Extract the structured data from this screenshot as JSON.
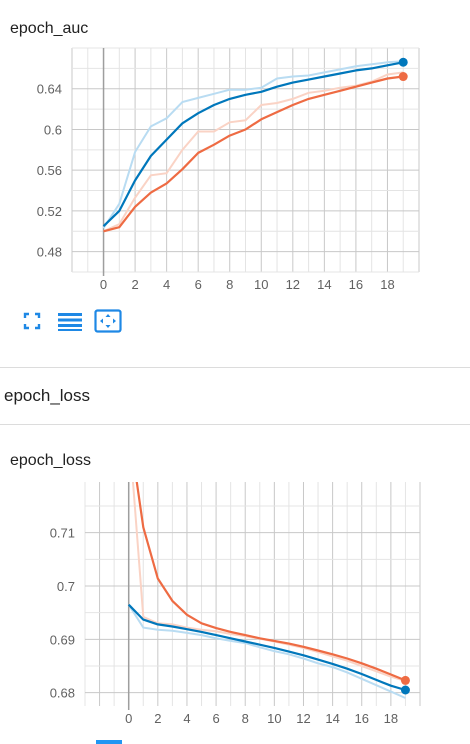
{
  "cards": {
    "auc_title": "epoch_auc",
    "loss_section": "epoch_loss",
    "loss_title": "epoch_loss"
  },
  "toolbar": {
    "fullscreen_icon": "fullscreen-icon",
    "legend_icon": "list-icon",
    "fit_icon": "fit-domain-icon",
    "accent": "#1e88e5"
  },
  "chart_data": [
    {
      "type": "line",
      "title": "epoch_auc",
      "xlabel": "",
      "ylabel": "",
      "xlim": [
        -2,
        20
      ],
      "ylim": [
        0.46,
        0.68
      ],
      "xticks": [
        0,
        2,
        4,
        6,
        8,
        10,
        12,
        14,
        16,
        18
      ],
      "yticks": [
        0.48,
        0.52,
        0.56,
        0.6,
        0.64
      ],
      "ytick_labels": [
        "0.48",
        "0.52",
        "0.56",
        "0.6",
        "0.64"
      ],
      "grid": true,
      "x": [
        0,
        1,
        2,
        3,
        4,
        5,
        6,
        7,
        8,
        9,
        10,
        11,
        12,
        13,
        14,
        15,
        16,
        17,
        18,
        19
      ],
      "series": [
        {
          "color": "#0077bb",
          "raw_color": "#b9dcf2",
          "raw": [
            0.503,
            0.527,
            0.578,
            0.603,
            0.611,
            0.627,
            0.631,
            0.635,
            0.639,
            0.639,
            0.641,
            0.65,
            0.652,
            0.653,
            0.656,
            0.659,
            0.662,
            0.664,
            0.666,
            0.667
          ],
          "values": [
            0.505,
            0.52,
            0.55,
            0.574,
            0.59,
            0.606,
            0.616,
            0.624,
            0.63,
            0.634,
            0.637,
            0.642,
            0.646,
            0.649,
            0.652,
            0.655,
            0.658,
            0.66,
            0.663,
            0.666
          ]
        },
        {
          "color": "#ee6b43",
          "raw_color": "#fad3c5",
          "raw": [
            0.5,
            0.507,
            0.533,
            0.555,
            0.557,
            0.58,
            0.598,
            0.598,
            0.607,
            0.609,
            0.624,
            0.626,
            0.63,
            0.636,
            0.638,
            0.641,
            0.643,
            0.647,
            0.654,
            0.656
          ],
          "values": [
            0.5,
            0.504,
            0.524,
            0.538,
            0.547,
            0.561,
            0.577,
            0.585,
            0.594,
            0.6,
            0.61,
            0.617,
            0.624,
            0.63,
            0.634,
            0.638,
            0.642,
            0.646,
            0.65,
            0.652
          ]
        }
      ]
    },
    {
      "type": "line",
      "title": "epoch_loss",
      "xlabel": "",
      "ylabel": "",
      "xlim": [
        -3,
        20
      ],
      "ylim": [
        0.6775,
        0.7195
      ],
      "xticks": [
        0,
        2,
        4,
        6,
        8,
        10,
        12,
        14,
        16,
        18
      ],
      "yticks": [
        0.68,
        0.69,
        0.7,
        0.71
      ],
      "ytick_labels": [
        "0.68",
        "0.69",
        "0.7",
        "0.71"
      ],
      "grid": true,
      "x": [
        0,
        1,
        2,
        3,
        4,
        5,
        6,
        7,
        8,
        9,
        10,
        11,
        12,
        13,
        14,
        15,
        16,
        17,
        18,
        19
      ],
      "series": [
        {
          "color": "#0077bb",
          "raw_color": "#b9dcf2",
          "raw": [
            0.6965,
            0.6922,
            0.6918,
            0.6916,
            0.6912,
            0.6908,
            0.6902,
            0.6897,
            0.6893,
            0.6885,
            0.6878,
            0.6872,
            0.6864,
            0.6855,
            0.6848,
            0.6838,
            0.6826,
            0.6814,
            0.6802,
            0.679
          ],
          "values": [
            0.6965,
            0.6937,
            0.6928,
            0.6924,
            0.6919,
            0.6914,
            0.6908,
            0.6902,
            0.6896,
            0.689,
            0.6884,
            0.6877,
            0.687,
            0.6862,
            0.6854,
            0.6845,
            0.6835,
            0.6824,
            0.6813,
            0.6805
          ]
        },
        {
          "color": "#ee6b43",
          "raw_color": "#fad3c5",
          "raw": [
            0.73,
            0.6942,
            0.693,
            0.6928,
            0.6922,
            0.6918,
            0.6915,
            0.691,
            0.6906,
            0.6901,
            0.6896,
            0.689,
            0.6884,
            0.6876,
            0.6868,
            0.686,
            0.685,
            0.684,
            0.683,
            0.6822
          ],
          "values": [
            0.73,
            0.711,
            0.7014,
            0.6972,
            0.6946,
            0.693,
            0.6921,
            0.6914,
            0.6908,
            0.6902,
            0.6897,
            0.6892,
            0.6886,
            0.6879,
            0.6872,
            0.6864,
            0.6855,
            0.6845,
            0.6834,
            0.6823
          ]
        }
      ]
    }
  ]
}
